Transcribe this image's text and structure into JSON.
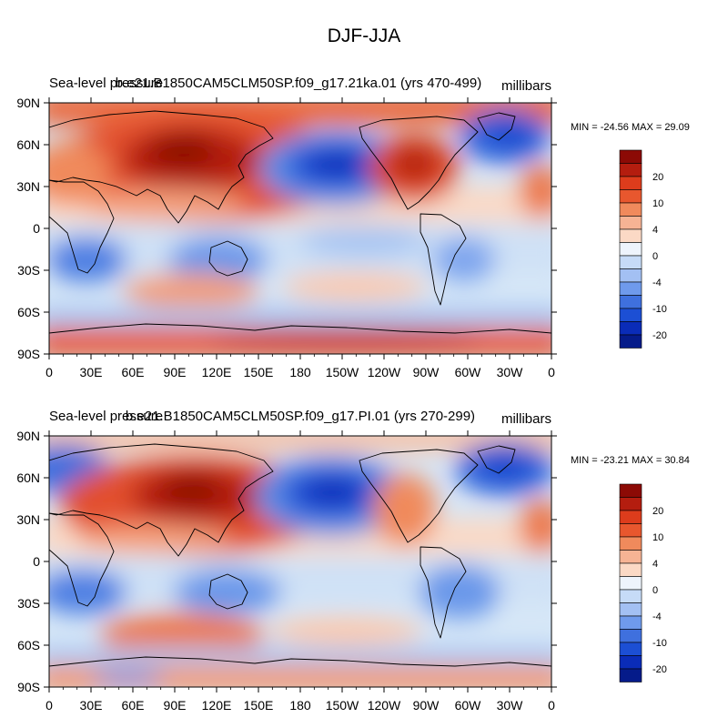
{
  "figure_title": "DJF-JJA",
  "colors": {
    "ocean_base": "#d6e7f7",
    "coastline": "#000000"
  },
  "chart_data": [
    {
      "type": "heatmap",
      "left_title": "Sea-level pressure",
      "center_title": "b.e21.B1850CAM5CLM50SP.f09_g17.21ka.01 (yrs 470-499)",
      "units": "millibars",
      "stats": "MIN = -24.56 MAX =  29.09",
      "xlabel": "",
      "ylabel": "",
      "x_ticks": [
        "0",
        "30E",
        "60E",
        "90E",
        "120E",
        "150E",
        "180",
        "150W",
        "120W",
        "90W",
        "60W",
        "30W",
        "0"
      ],
      "y_ticks": [
        "90N",
        "60N",
        "30N",
        "0",
        "30S",
        "60S",
        "90S"
      ],
      "xlim": [
        0,
        360
      ],
      "ylim": [
        -90,
        90
      ],
      "colorbar_labels": [
        "20",
        "10",
        "4",
        "0",
        "-4",
        "-10",
        "-20"
      ],
      "features": [
        {
          "name": "siberian-high",
          "lon": 100,
          "lat": 52,
          "value": 29
        },
        {
          "name": "north-american-high",
          "lon": 265,
          "lat": 52,
          "value": 15
        },
        {
          "name": "aleutian-low",
          "lon": 205,
          "lat": 47,
          "value": -24
        },
        {
          "name": "icelandic-low",
          "lon": 325,
          "lat": 62,
          "value": -16
        },
        {
          "name": "australian-low",
          "lon": 132,
          "lat": -22,
          "value": -9
        },
        {
          "name": "southern-indian-high",
          "lon": 90,
          "lat": -35,
          "value": 8
        },
        {
          "name": "antarctic-band",
          "lon": 180,
          "lat": -78,
          "value": 14
        }
      ]
    },
    {
      "type": "heatmap",
      "left_title": "Sea-level pressure",
      "center_title": "b.e21.B1850CAM5CLM50SP.f09_g17.PI.01 (yrs 270-299)",
      "units": "millibars",
      "stats": "MIN = -23.21 MAX =  30.84",
      "xlabel": "",
      "ylabel": "",
      "x_ticks": [
        "0",
        "30E",
        "60E",
        "90E",
        "120E",
        "150E",
        "180",
        "150W",
        "120W",
        "90W",
        "60W",
        "30W",
        "0"
      ],
      "y_ticks": [
        "90N",
        "60N",
        "30N",
        "0",
        "30S",
        "60S",
        "90S"
      ],
      "xlim": [
        0,
        360
      ],
      "ylim": [
        -90,
        90
      ],
      "colorbar_labels": [
        "20",
        "10",
        "4",
        "0",
        "-4",
        "-10",
        "-20"
      ],
      "features": [
        {
          "name": "siberian-high",
          "lon": 105,
          "lat": 50,
          "value": 30
        },
        {
          "name": "north-american-high",
          "lon": 255,
          "lat": 48,
          "value": 8
        },
        {
          "name": "aleutian-low",
          "lon": 200,
          "lat": 50,
          "value": -23
        },
        {
          "name": "icelandic-low",
          "lon": 330,
          "lat": 62,
          "value": -14
        },
        {
          "name": "australian-low",
          "lon": 130,
          "lat": -22,
          "value": -8
        },
        {
          "name": "southern-indian-high",
          "lon": 95,
          "lat": -42,
          "value": 10
        },
        {
          "name": "antarctic-band",
          "lon": 180,
          "lat": -80,
          "value": 9
        }
      ]
    }
  ]
}
